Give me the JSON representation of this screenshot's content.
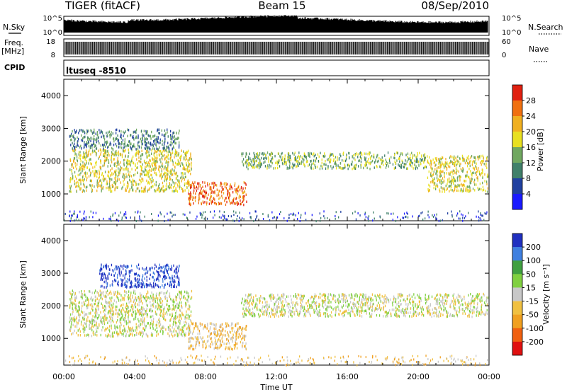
{
  "header": {
    "radar": "TIGER (fitACF)",
    "beam": "Beam 15",
    "date": "08/Sep/2010"
  },
  "ctrl": {
    "nsky_label": "N.Sky",
    "nsky_ticks": [
      "10^5",
      "10^0"
    ],
    "nsearch_label": "N.Search",
    "nsearch_ticks": [
      "10^5",
      "10^0"
    ],
    "freq_label": "Freq.",
    "freq_unit": "[MHz]",
    "freq_ticks": [
      "18",
      "8"
    ],
    "nave_label": "Nave",
    "nave_ticks": [
      "60",
      "0"
    ],
    "cpid_label": "CPID",
    "cpid_value": "ltuseq  -8510"
  },
  "chart_data": [
    {
      "type": "heatmap",
      "name": "power",
      "ylabel": "Slant Range [km]",
      "xlabel": "",
      "ylim": [
        180,
        4500
      ],
      "yticks": [
        "1000",
        "2000",
        "3000",
        "4000"
      ],
      "colorbar_label": "Power [dB]",
      "colorbar_ticks": [
        "4",
        "8",
        "12",
        "16",
        "20",
        "24",
        "28"
      ],
      "colors": [
        "#1a1aff",
        "#2040a0",
        "#40806a",
        "#70a860",
        "#e8e020",
        "#f0b020",
        "#f07010",
        "#e02010"
      ],
      "regions": [
        {
          "t0": 0.3,
          "t1": 7.2,
          "r0": 1100,
          "r1": 2400,
          "level": 4
        },
        {
          "t0": 0.3,
          "t1": 6.5,
          "r0": 2400,
          "r1": 3000,
          "level": 2
        },
        {
          "t0": 7.0,
          "t1": 10.3,
          "r0": 700,
          "r1": 1400,
          "level": 6
        },
        {
          "t0": 10.0,
          "t1": 20.5,
          "r0": 1800,
          "r1": 2300,
          "level": 3
        },
        {
          "t0": 20.5,
          "t1": 24.0,
          "r0": 1100,
          "r1": 2200,
          "level": 4
        }
      ]
    },
    {
      "type": "heatmap",
      "name": "velocity",
      "ylabel": "Slant Range [km]",
      "xlabel": "Time UT",
      "ylim": [
        180,
        4500
      ],
      "yticks": [
        "1000",
        "2000",
        "3000",
        "4000"
      ],
      "colorbar_label": "Velocity [m s⁻¹]",
      "colorbar_ticks": [
        "200",
        "100",
        "50",
        "15",
        "-15",
        "-50",
        "-100",
        "-200"
      ],
      "colors": [
        "#2030c0",
        "#4080e0",
        "#40a040",
        "#80d040",
        "#c8c8c8",
        "#f0c040",
        "#f0a020",
        "#f06010",
        "#e01010"
      ],
      "regions": [
        {
          "t0": 0.3,
          "t1": 7.2,
          "r0": 1100,
          "r1": 2500,
          "level": 4
        },
        {
          "t0": 7.0,
          "t1": 10.3,
          "r0": 700,
          "r1": 1500,
          "level": 5
        },
        {
          "t0": 2.0,
          "t1": 6.5,
          "r0": 2600,
          "r1": 3300,
          "level": 0
        },
        {
          "t0": 10.0,
          "t1": 24.0,
          "r0": 1700,
          "r1": 2400,
          "level": 4
        }
      ]
    }
  ],
  "xaxis": {
    "ticks": [
      "00:00",
      "04:00",
      "08:00",
      "12:00",
      "16:00",
      "20:00",
      "00:00"
    ],
    "label": "Time UT",
    "range_hours": [
      0,
      24
    ]
  }
}
